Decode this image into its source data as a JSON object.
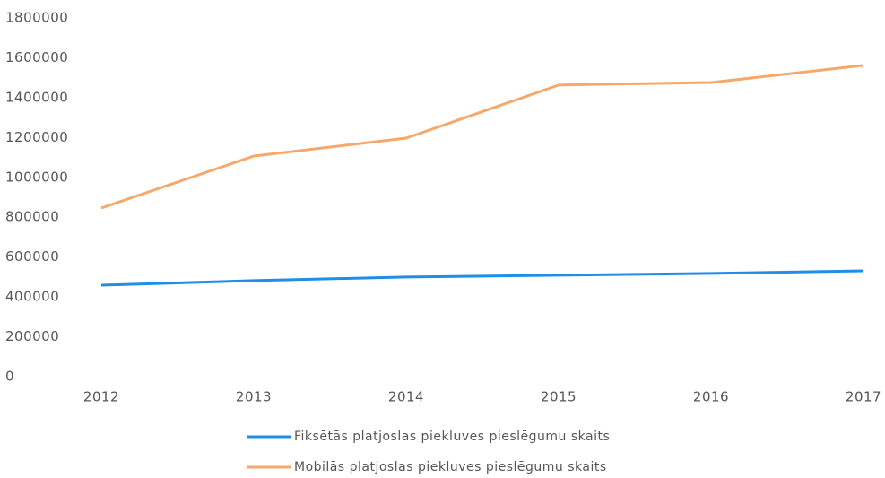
{
  "chart_data": {
    "type": "line",
    "categories": [
      "2012",
      "2013",
      "2014",
      "2015",
      "2016",
      "2017"
    ],
    "series": [
      {
        "name": "Fiksētās platjoslas piekluves pieslēgumu skaits",
        "color": "#1f8ee8",
        "values": [
          459000,
          482000,
          500000,
          509000,
          518000,
          531000
        ]
      },
      {
        "name": "Mobilās platjoslas piekluves pieslēgumu skaits",
        "color": "#f6a86b",
        "values": [
          846000,
          1107000,
          1197000,
          1463000,
          1476000,
          1562000
        ]
      }
    ],
    "ylim": [
      0,
      1800000
    ],
    "yticks": [
      0,
      200000,
      400000,
      600000,
      800000,
      1000000,
      1200000,
      1400000,
      1600000,
      1800000
    ],
    "grid": false,
    "legend": "bottom"
  }
}
